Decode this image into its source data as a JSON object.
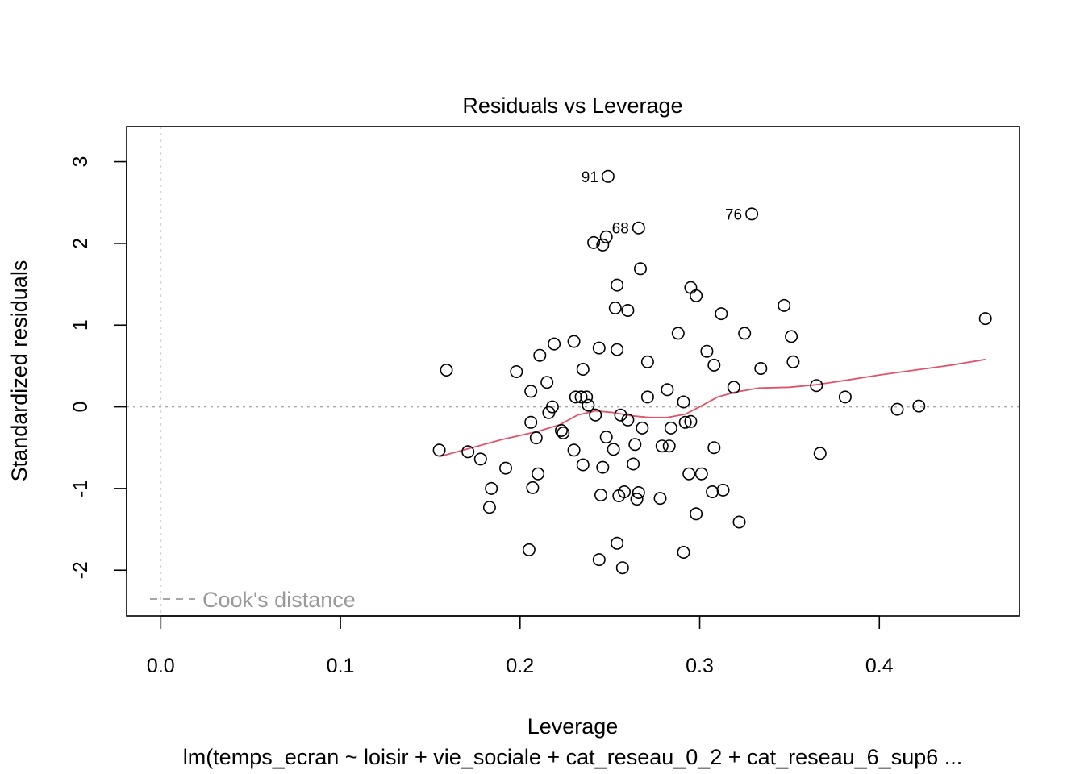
{
  "chart_data": {
    "type": "scatter",
    "title": "Residuals vs Leverage",
    "xlabel": "Leverage",
    "ylabel": "Standardized residuals",
    "subtitle": "lm(temps_ecran ~ loisir + vie_sociale + cat_reseau_0_2 + cat_reseau_6_sup6  ...",
    "xlim": [
      -0.019,
      0.478
    ],
    "ylim": [
      -2.56,
      3.43
    ],
    "x_ticks": [
      0.0,
      0.1,
      0.2,
      0.3,
      0.4
    ],
    "x_tick_labels": [
      "0.0",
      "0.1",
      "0.2",
      "0.3",
      "0.4"
    ],
    "y_ticks": [
      -2,
      -1,
      0,
      1,
      2,
      3
    ],
    "y_tick_labels": [
      "-2",
      "-1",
      "0",
      "1",
      "2",
      "3"
    ],
    "legend": {
      "label": "Cook's distance",
      "position": "bottom-left",
      "color": "#999999"
    },
    "reference_lines": {
      "horizontal_y": 0,
      "vertical_x": 0,
      "color": "#aaaaaa"
    },
    "point_color": "#000000",
    "smooth_color": "#DF536B",
    "labeled_points": [
      {
        "label": "91",
        "x": 0.249,
        "y": 2.82
      },
      {
        "label": "76",
        "x": 0.329,
        "y": 2.36
      },
      {
        "label": "68",
        "x": 0.266,
        "y": 2.19
      }
    ],
    "points": [
      [
        0.249,
        2.82
      ],
      [
        0.329,
        2.36
      ],
      [
        0.266,
        2.19
      ],
      [
        0.248,
        2.08
      ],
      [
        0.241,
        2.01
      ],
      [
        0.246,
        1.98
      ],
      [
        0.267,
        1.69
      ],
      [
        0.254,
        1.49
      ],
      [
        0.295,
        1.46
      ],
      [
        0.298,
        1.36
      ],
      [
        0.253,
        1.21
      ],
      [
        0.26,
        1.18
      ],
      [
        0.347,
        1.24
      ],
      [
        0.312,
        1.14
      ],
      [
        0.459,
        1.08
      ],
      [
        0.288,
        0.9
      ],
      [
        0.325,
        0.9
      ],
      [
        0.351,
        0.86
      ],
      [
        0.23,
        0.8
      ],
      [
        0.219,
        0.77
      ],
      [
        0.244,
        0.72
      ],
      [
        0.254,
        0.7
      ],
      [
        0.304,
        0.68
      ],
      [
        0.211,
        0.63
      ],
      [
        0.271,
        0.55
      ],
      [
        0.352,
        0.55
      ],
      [
        0.308,
        0.51
      ],
      [
        0.334,
        0.47
      ],
      [
        0.235,
        0.46
      ],
      [
        0.159,
        0.45
      ],
      [
        0.198,
        0.43
      ],
      [
        0.215,
        0.3
      ],
      [
        0.365,
        0.26
      ],
      [
        0.319,
        0.24
      ],
      [
        0.206,
        0.19
      ],
      [
        0.282,
        0.21
      ],
      [
        0.231,
        0.12
      ],
      [
        0.234,
        0.12
      ],
      [
        0.237,
        0.12
      ],
      [
        0.271,
        0.12
      ],
      [
        0.381,
        0.12
      ],
      [
        0.291,
        0.06
      ],
      [
        0.238,
        0.02
      ],
      [
        0.218,
        0.0
      ],
      [
        0.422,
        0.01
      ],
      [
        0.41,
        -0.03
      ],
      [
        0.216,
        -0.07
      ],
      [
        0.242,
        -0.1
      ],
      [
        0.256,
        -0.1
      ],
      [
        0.26,
        -0.16
      ],
      [
        0.206,
        -0.19
      ],
      [
        0.292,
        -0.19
      ],
      [
        0.295,
        -0.18
      ],
      [
        0.268,
        -0.26
      ],
      [
        0.284,
        -0.26
      ],
      [
        0.223,
        -0.29
      ],
      [
        0.224,
        -0.32
      ],
      [
        0.209,
        -0.38
      ],
      [
        0.248,
        -0.37
      ],
      [
        0.264,
        -0.46
      ],
      [
        0.279,
        -0.48
      ],
      [
        0.283,
        -0.48
      ],
      [
        0.308,
        -0.5
      ],
      [
        0.155,
        -0.53
      ],
      [
        0.23,
        -0.53
      ],
      [
        0.252,
        -0.52
      ],
      [
        0.367,
        -0.57
      ],
      [
        0.171,
        -0.55
      ],
      [
        0.178,
        -0.64
      ],
      [
        0.235,
        -0.71
      ],
      [
        0.263,
        -0.7
      ],
      [
        0.192,
        -0.75
      ],
      [
        0.246,
        -0.74
      ],
      [
        0.21,
        -0.82
      ],
      [
        0.294,
        -0.82
      ],
      [
        0.301,
        -0.82
      ],
      [
        0.184,
        -1.0
      ],
      [
        0.207,
        -0.99
      ],
      [
        0.258,
        -1.04
      ],
      [
        0.266,
        -1.05
      ],
      [
        0.307,
        -1.04
      ],
      [
        0.313,
        -1.02
      ],
      [
        0.245,
        -1.08
      ],
      [
        0.255,
        -1.09
      ],
      [
        0.265,
        -1.13
      ],
      [
        0.278,
        -1.12
      ],
      [
        0.183,
        -1.23
      ],
      [
        0.298,
        -1.31
      ],
      [
        0.322,
        -1.41
      ],
      [
        0.254,
        -1.67
      ],
      [
        0.205,
        -1.75
      ],
      [
        0.291,
        -1.78
      ],
      [
        0.244,
        -1.87
      ],
      [
        0.257,
        -1.97
      ]
    ],
    "smooth_line": [
      [
        0.155,
        -0.61
      ],
      [
        0.17,
        -0.52
      ],
      [
        0.19,
        -0.4
      ],
      [
        0.21,
        -0.3
      ],
      [
        0.222,
        -0.22
      ],
      [
        0.232,
        -0.1
      ],
      [
        0.242,
        -0.05
      ],
      [
        0.252,
        -0.07
      ],
      [
        0.262,
        -0.11
      ],
      [
        0.272,
        -0.13
      ],
      [
        0.282,
        -0.13
      ],
      [
        0.292,
        -0.09
      ],
      [
        0.3,
        0.0
      ],
      [
        0.31,
        0.12
      ],
      [
        0.32,
        0.18
      ],
      [
        0.333,
        0.23
      ],
      [
        0.35,
        0.24
      ],
      [
        0.365,
        0.27
      ],
      [
        0.38,
        0.32
      ],
      [
        0.4,
        0.39
      ],
      [
        0.42,
        0.45
      ],
      [
        0.44,
        0.51
      ],
      [
        0.459,
        0.58
      ]
    ]
  }
}
